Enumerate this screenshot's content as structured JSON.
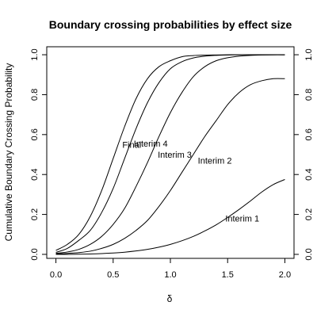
{
  "chart_data": {
    "type": "line",
    "title": "Boundary crossing probabilities by effect size",
    "xlabel": "δ",
    "ylabel": "Cumulative Boundary Crossing Probability",
    "xlim": [
      -0.08,
      2.08
    ],
    "ylim": [
      -0.02,
      1.04
    ],
    "x_ticks": [
      0.0,
      0.5,
      1.0,
      1.5,
      2.0
    ],
    "x_tick_labels": [
      "0.0",
      "0.5",
      "1.0",
      "1.5",
      "2.0"
    ],
    "y_ticks": [
      0.0,
      0.2,
      0.4,
      0.6,
      0.8,
      1.0
    ],
    "y_tick_labels": [
      "0.0",
      "0.2",
      "0.4",
      "0.6",
      "0.8",
      "1.0"
    ],
    "right_axis_ticks": true,
    "grid": false,
    "x": [
      0.0,
      0.1,
      0.2,
      0.3,
      0.4,
      0.5,
      0.6,
      0.7,
      0.8,
      0.9,
      1.0,
      1.1,
      1.2,
      1.3,
      1.4,
      1.5,
      1.6,
      1.7,
      1.8,
      1.9,
      2.0
    ],
    "series": [
      {
        "name": "Final",
        "label_pos": [
          0.58,
          0.55
        ],
        "values": [
          0.02,
          0.05,
          0.1,
          0.19,
          0.32,
          0.48,
          0.64,
          0.78,
          0.88,
          0.94,
          0.97,
          0.99,
          0.996,
          0.998,
          0.999,
          1.0,
          1.0,
          1.0,
          1.0,
          1.0,
          1.0
        ]
      },
      {
        "name": "Interim 4",
        "label_pos": [
          0.68,
          0.555
        ],
        "values": [
          0.01,
          0.03,
          0.07,
          0.12,
          0.21,
          0.33,
          0.48,
          0.63,
          0.76,
          0.86,
          0.93,
          0.965,
          0.984,
          0.993,
          0.997,
          0.999,
          1.0,
          1.0,
          1.0,
          1.0,
          1.0
        ]
      },
      {
        "name": "Interim 3",
        "label_pos": [
          0.89,
          0.5
        ],
        "values": [
          0.005,
          0.012,
          0.025,
          0.05,
          0.09,
          0.15,
          0.23,
          0.34,
          0.46,
          0.59,
          0.71,
          0.81,
          0.89,
          0.94,
          0.97,
          0.985,
          0.993,
          0.997,
          0.999,
          1.0,
          1.0
        ]
      },
      {
        "name": "Interim 2",
        "label_pos": [
          1.24,
          0.47
        ],
        "values": [
          0.002,
          0.005,
          0.009,
          0.016,
          0.03,
          0.05,
          0.08,
          0.12,
          0.17,
          0.24,
          0.32,
          0.41,
          0.5,
          0.59,
          0.67,
          0.75,
          0.81,
          0.85,
          0.87,
          0.88,
          0.88
        ]
      },
      {
        "name": "Interim 1",
        "label_pos": [
          1.48,
          0.18
        ],
        "values": [
          0.0,
          0.0,
          0.001,
          0.002,
          0.004,
          0.007,
          0.011,
          0.017,
          0.025,
          0.036,
          0.05,
          0.068,
          0.09,
          0.117,
          0.148,
          0.185,
          0.225,
          0.268,
          0.313,
          0.35,
          0.375
        ]
      }
    ]
  }
}
